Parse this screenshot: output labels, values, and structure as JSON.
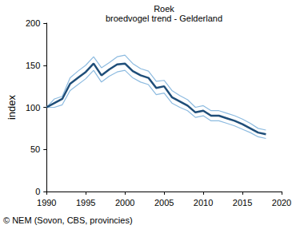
{
  "chart_data": {
    "type": "line",
    "title": "Roek",
    "subtitle": "broedvogel trend - Gelderland",
    "y_label": "index",
    "source": "© NEM (Sovon, CBS, provincies)",
    "x": [
      1990,
      1991,
      1992,
      1993,
      1994,
      1995,
      1996,
      1997,
      1998,
      1999,
      2000,
      2001,
      2002,
      2003,
      2004,
      2005,
      2006,
      2007,
      2008,
      2009,
      2010,
      2011,
      2012,
      2013,
      2014,
      2015,
      2016,
      2017,
      2018
    ],
    "series": [
      {
        "color": "#8dbbe0",
        "line_style": "thin",
        "values": [
          100,
          110,
          113,
          135,
          143,
          150,
          160,
          147,
          153,
          160,
          162,
          152,
          146,
          143,
          131,
          132,
          120,
          114,
          109,
          100,
          102,
          96,
          96,
          93,
          90,
          86,
          81,
          75,
          73
        ]
      },
      {
        "color": "#8dbbe0",
        "line_style": "thin",
        "values": [
          100,
          100,
          103,
          120,
          127,
          134,
          144,
          130,
          137,
          142,
          144,
          135,
          130,
          127,
          115,
          117,
          105,
          100,
          96,
          88,
          90,
          84,
          84,
          81,
          78,
          74,
          70,
          65,
          63
        ]
      },
      {
        "color": "#1f4e79",
        "line_style": "thick",
        "values": [
          100,
          105,
          110,
          128,
          135,
          142,
          152,
          138,
          145,
          151,
          152,
          143,
          138,
          135,
          123,
          125,
          112,
          107,
          102,
          94,
          96,
          90,
          90,
          87,
          84,
          80,
          75,
          70,
          68
        ]
      }
    ],
    "xlim": [
      1990,
      2020
    ],
    "xticks": [
      1990,
      1995,
      2000,
      2005,
      2010,
      2015,
      2020
    ],
    "ylim": [
      0,
      200
    ],
    "yticks": [
      0,
      50,
      100,
      150,
      200
    ],
    "grid": false
  }
}
